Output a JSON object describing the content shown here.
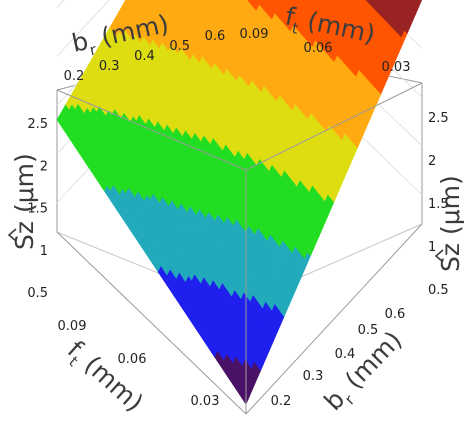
{
  "chart_data": {
    "type": "surface3d",
    "title": "",
    "x_variable": {
      "name": "b",
      "subscript": "r",
      "unit": "(mm)",
      "range": [
        0.2,
        0.6
      ],
      "ticks": [
        "0.2",
        "0.3",
        "0.4",
        "0.5",
        "0.6"
      ]
    },
    "y_variable": {
      "name": "f",
      "subscript": "t",
      "unit": "(mm)",
      "range": [
        0.02,
        0.09
      ],
      "ticks": [
        "0.03",
        "0.06",
        "0.09"
      ]
    },
    "z_variable": {
      "name": "Sz",
      "unit": "(μm)",
      "range": [
        0.2,
        2.7
      ],
      "ticks": [
        "0.5",
        "1",
        "1.5",
        "2",
        "2.5"
      ]
    },
    "surface_corners": [
      {
        "br": 0.2,
        "ft": 0.02,
        "z": 0.3
      },
      {
        "br": 0.6,
        "ft": 0.02,
        "z": 2.5
      },
      {
        "br": 0.6,
        "ft": 0.09,
        "z": 2.55
      },
      {
        "br": 0.2,
        "ft": 0.09,
        "z": 1.35
      }
    ],
    "colormap": {
      "levels": [
        0,
        0.5,
        0.8,
        1.1,
        1.4,
        1.7,
        2.0,
        2.3,
        3.0
      ],
      "colors": [
        "#4a1266",
        "#2020ee",
        "#22aabb",
        "#22dd22",
        "#dddd11",
        "#ffaa11",
        "#ff5500",
        "#992222"
      ]
    }
  },
  "labels": {
    "br_top": {
      "main": "b",
      "sub": "r",
      "unit": " (mm)"
    },
    "ft_top": {
      "main": "f",
      "sub": "t",
      "unit": " (mm)"
    },
    "ft_front": {
      "main": "f",
      "sub": "t",
      "unit": " (mm)"
    },
    "br_front": {
      "main": "b",
      "sub": "r",
      "unit": " (mm)"
    },
    "sz_left": "Sz (μm)",
    "sz_right": "Sz (μm)"
  },
  "ticks": {
    "br_top": [
      "0.2",
      "0.3",
      "0.4",
      "0.5",
      "0.6"
    ],
    "ft_top": [
      "0.09",
      "0.06",
      "0.03"
    ],
    "z_left": [
      "2.5",
      "2",
      "1.5",
      "1",
      "0.5"
    ],
    "z_right": [
      "2.5",
      "2",
      "1.5",
      "1",
      "0.5"
    ],
    "ft_front": [
      "0.09",
      "0.06",
      "0.03"
    ],
    "br_front": [
      "0.6",
      "0.5",
      "0.4",
      "0.3",
      "0.2"
    ]
  }
}
